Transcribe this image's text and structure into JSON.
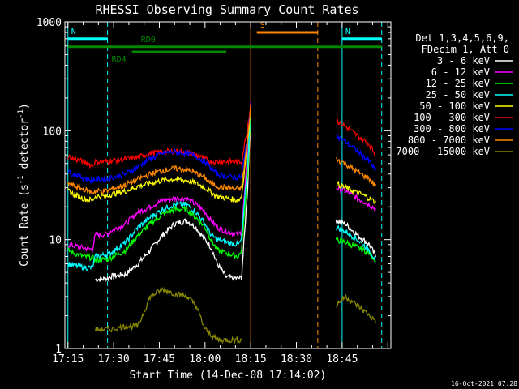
{
  "title": "RHESSI Observing Summary Count Rates",
  "footer_date": "16-Oct-2021 07:28",
  "chart_data": {
    "type": "line",
    "title": "RHESSI Observing Summary Count Rates",
    "xlabel": "Start Time (14-Dec-08 17:14:02)",
    "ylabel_prefix": "Count Rate (s",
    "ylabel_sup1": "-1",
    "ylabel_mid": " detector",
    "ylabel_sup2": "-1",
    "ylabel_suffix": ")",
    "x_tick_labels": [
      "17:15",
      "17:30",
      "17:45",
      "18:00",
      "18:15",
      "18:30",
      "18:45"
    ],
    "x_ticks_min": [
      1,
      16,
      31,
      46,
      61,
      76,
      91
    ],
    "xlim_min": [
      0,
      107
    ],
    "y_scale": "log",
    "ylim": [
      1,
      1000
    ],
    "y_tick_labels": [
      "1",
      "10",
      "100",
      "1000"
    ],
    "y_tick_values": [
      1,
      10,
      100,
      1000
    ],
    "legend": {
      "header": [
        "Det 1,3,4,5,6,9,",
        "FDecim 1, Att 0"
      ],
      "placement": "right"
    },
    "series": [
      {
        "name": "3 - 6 keV",
        "color": "#ffffff",
        "points": [
          [
            10,
            4.3
          ],
          [
            14,
            4.4
          ],
          [
            15,
            4.6
          ],
          [
            20,
            4.8
          ],
          [
            24,
            6
          ],
          [
            28,
            8
          ],
          [
            32,
            11
          ],
          [
            36,
            14
          ],
          [
            40,
            15
          ],
          [
            43,
            13
          ],
          [
            46,
            10
          ],
          [
            48,
            8.5
          ],
          [
            50,
            6
          ],
          [
            53,
            4.5
          ],
          [
            57,
            4.4
          ],
          [
            58,
            4.5
          ],
          [
            60,
            30
          ],
          [
            61,
            150
          ]
        ],
        "points2": [
          [
            89,
            15
          ],
          [
            92,
            14
          ],
          [
            96,
            11
          ],
          [
            100,
            9
          ],
          [
            102,
            7
          ]
        ]
      },
      {
        "name": "6 - 12 keV",
        "color": "#ff00ff",
        "points": [
          [
            1,
            9
          ],
          [
            3,
            8.8
          ],
          [
            6,
            8.4
          ],
          [
            9,
            8.1
          ],
          [
            10,
            11
          ],
          [
            14,
            11.2
          ],
          [
            15,
            12
          ],
          [
            20,
            14
          ],
          [
            24,
            18
          ],
          [
            28,
            20
          ],
          [
            32,
            23
          ],
          [
            36,
            24
          ],
          [
            40,
            24
          ],
          [
            43,
            21
          ],
          [
            46,
            18
          ],
          [
            48,
            15
          ],
          [
            50,
            13
          ],
          [
            53,
            12
          ],
          [
            57,
            11
          ],
          [
            58,
            12
          ],
          [
            60,
            60
          ],
          [
            61,
            180
          ]
        ],
        "points2": [
          [
            89,
            30
          ],
          [
            92,
            28
          ],
          [
            96,
            24
          ],
          [
            100,
            21
          ],
          [
            102,
            19
          ]
        ]
      },
      {
        "name": "12 - 25 keV",
        "color": "#00ff00",
        "points": [
          [
            1,
            8
          ],
          [
            3,
            7.5
          ],
          [
            6,
            7
          ],
          [
            9,
            6.8
          ],
          [
            10,
            6.5
          ],
          [
            14,
            6.6
          ],
          [
            15,
            6.8
          ],
          [
            20,
            8
          ],
          [
            24,
            11
          ],
          [
            28,
            14
          ],
          [
            32,
            17
          ],
          [
            36,
            19
          ],
          [
            40,
            19
          ],
          [
            43,
            16
          ],
          [
            46,
            13
          ],
          [
            48,
            10
          ],
          [
            50,
            8
          ],
          [
            53,
            7.5
          ],
          [
            57,
            7
          ],
          [
            58,
            8
          ],
          [
            60,
            40
          ],
          [
            61,
            160
          ]
        ],
        "points2": [
          [
            89,
            10
          ],
          [
            92,
            9.5
          ],
          [
            96,
            8.5
          ],
          [
            100,
            7.5
          ],
          [
            102,
            6.5
          ]
        ]
      },
      {
        "name": "25 - 50 keV",
        "color": "#00ffff",
        "points": [
          [
            1,
            6
          ],
          [
            3,
            5.8
          ],
          [
            6,
            5.6
          ],
          [
            9,
            5.5
          ],
          [
            10,
            7
          ],
          [
            14,
            7.3
          ],
          [
            15,
            7.5
          ],
          [
            20,
            9.5
          ],
          [
            24,
            13
          ],
          [
            28,
            16
          ],
          [
            32,
            19
          ],
          [
            36,
            21
          ],
          [
            40,
            21
          ],
          [
            43,
            18
          ],
          [
            46,
            14
          ],
          [
            48,
            11
          ],
          [
            50,
            10
          ],
          [
            53,
            9.5
          ],
          [
            57,
            9
          ],
          [
            58,
            10
          ],
          [
            60,
            50
          ],
          [
            61,
            170
          ]
        ],
        "points2": [
          [
            89,
            13
          ],
          [
            92,
            12
          ],
          [
            96,
            10
          ],
          [
            100,
            8
          ],
          [
            102,
            6.5
          ]
        ]
      },
      {
        "name": "50 - 100 keV",
        "color": "#ffff00",
        "points": [
          [
            1,
            28
          ],
          [
            3,
            26
          ],
          [
            6,
            24
          ],
          [
            9,
            23
          ],
          [
            10,
            25
          ],
          [
            14,
            25
          ],
          [
            15,
            26
          ],
          [
            20,
            28
          ],
          [
            24,
            31
          ],
          [
            28,
            33
          ],
          [
            32,
            35
          ],
          [
            36,
            36
          ],
          [
            40,
            35
          ],
          [
            43,
            33
          ],
          [
            46,
            30
          ],
          [
            48,
            27
          ],
          [
            50,
            25
          ],
          [
            53,
            24
          ],
          [
            57,
            23
          ],
          [
            58,
            25
          ],
          [
            60,
            80
          ],
          [
            61,
            170
          ]
        ],
        "points2": [
          [
            89,
            33
          ],
          [
            92,
            30
          ],
          [
            96,
            27
          ],
          [
            100,
            24
          ],
          [
            102,
            22
          ]
        ]
      },
      {
        "name": "100 - 300 keV",
        "color": "#ff0000",
        "points": [
          [
            1,
            58
          ],
          [
            3,
            55
          ],
          [
            6,
            52
          ],
          [
            9,
            48
          ],
          [
            10,
            52
          ],
          [
            14,
            52
          ],
          [
            15,
            53
          ],
          [
            18,
            54
          ],
          [
            24,
            57
          ],
          [
            28,
            62
          ],
          [
            32,
            64
          ],
          [
            36,
            65
          ],
          [
            40,
            64
          ],
          [
            43,
            60
          ],
          [
            46,
            55
          ],
          [
            48,
            52
          ],
          [
            50,
            52
          ],
          [
            53,
            52
          ],
          [
            57,
            52
          ],
          [
            58,
            52
          ],
          [
            60,
            110
          ],
          [
            61,
            175
          ]
        ],
        "points2": [
          [
            89,
            125
          ],
          [
            92,
            110
          ],
          [
            96,
            90
          ],
          [
            100,
            75
          ],
          [
            102,
            60
          ]
        ]
      },
      {
        "name": "300 - 800 keV",
        "color": "#0000ff",
        "points": [
          [
            1,
            42
          ],
          [
            3,
            40
          ],
          [
            6,
            37
          ],
          [
            9,
            35
          ],
          [
            10,
            36
          ],
          [
            14,
            36
          ],
          [
            15,
            37
          ],
          [
            20,
            40
          ],
          [
            24,
            47
          ],
          [
            28,
            55
          ],
          [
            32,
            62
          ],
          [
            36,
            64
          ],
          [
            40,
            62
          ],
          [
            43,
            58
          ],
          [
            46,
            52
          ],
          [
            48,
            45
          ],
          [
            50,
            40
          ],
          [
            53,
            38
          ],
          [
            57,
            37
          ],
          [
            58,
            38
          ],
          [
            60,
            90
          ],
          [
            61,
            160
          ]
        ],
        "points2": [
          [
            89,
            90
          ],
          [
            92,
            80
          ],
          [
            96,
            65
          ],
          [
            100,
            52
          ],
          [
            102,
            43
          ]
        ]
      },
      {
        "name": "800 - 7000 keV",
        "color": "#ff8800",
        "points": [
          [
            1,
            33
          ],
          [
            3,
            31
          ],
          [
            6,
            29
          ],
          [
            9,
            27
          ],
          [
            10,
            28
          ],
          [
            14,
            28
          ],
          [
            15,
            29
          ],
          [
            20,
            32
          ],
          [
            24,
            36
          ],
          [
            28,
            40
          ],
          [
            32,
            43
          ],
          [
            36,
            45
          ],
          [
            40,
            44
          ],
          [
            43,
            41
          ],
          [
            46,
            37
          ],
          [
            48,
            33
          ],
          [
            50,
            31
          ],
          [
            53,
            30
          ],
          [
            57,
            29
          ],
          [
            58,
            30
          ],
          [
            60,
            85
          ],
          [
            61,
            170
          ]
        ],
        "points2": [
          [
            89,
            55
          ],
          [
            92,
            50
          ],
          [
            96,
            42
          ],
          [
            100,
            36
          ],
          [
            102,
            31
          ]
        ]
      },
      {
        "name": "7000 - 15000 keV",
        "color": "#888800",
        "points": [
          [
            10,
            1.5
          ],
          [
            14,
            1.5
          ],
          [
            15,
            1.5
          ],
          [
            20,
            1.6
          ],
          [
            24,
            1.6
          ],
          [
            28,
            3
          ],
          [
            32,
            3.5
          ],
          [
            36,
            3.2
          ],
          [
            40,
            3
          ],
          [
            43,
            2.5
          ],
          [
            46,
            1.5
          ],
          [
            50,
            1.2
          ],
          [
            53,
            1.2
          ],
          [
            57,
            1.2
          ],
          [
            58,
            1.2
          ]
        ],
        "points2": [
          [
            89,
            2.5
          ],
          [
            92,
            3
          ],
          [
            96,
            2.5
          ],
          [
            100,
            2
          ],
          [
            102,
            1.8
          ]
        ]
      }
    ],
    "annotations": [
      {
        "label": "N",
        "color": "#00ffff",
        "x": [
          1,
          14
        ],
        "y": 700
      },
      {
        "label": "N",
        "color": "#00ffff",
        "x": [
          91,
          104
        ],
        "y": 700
      },
      {
        "label": "S",
        "color": "#ff8800",
        "x": [
          63,
          83
        ],
        "y": 800
      },
      {
        "label": "RD0",
        "color": "#008800",
        "x": [
          1,
          104
        ],
        "y": 590
      },
      {
        "label": "RD4",
        "color": "#008800",
        "x": [
          22,
          53
        ],
        "y": 530
      }
    ],
    "vlines": [
      {
        "x": 1,
        "color": "#00ffff",
        "dash": false
      },
      {
        "x": 14,
        "color": "#00ffff",
        "dash": true
      },
      {
        "x": 61,
        "color": "#ff8800",
        "dash": false
      },
      {
        "x": 83,
        "color": "#ff8800",
        "dash": true
      },
      {
        "x": 91,
        "color": "#00ffff",
        "dash": false
      },
      {
        "x": 104,
        "color": "#00ffff",
        "dash": true
      }
    ]
  }
}
